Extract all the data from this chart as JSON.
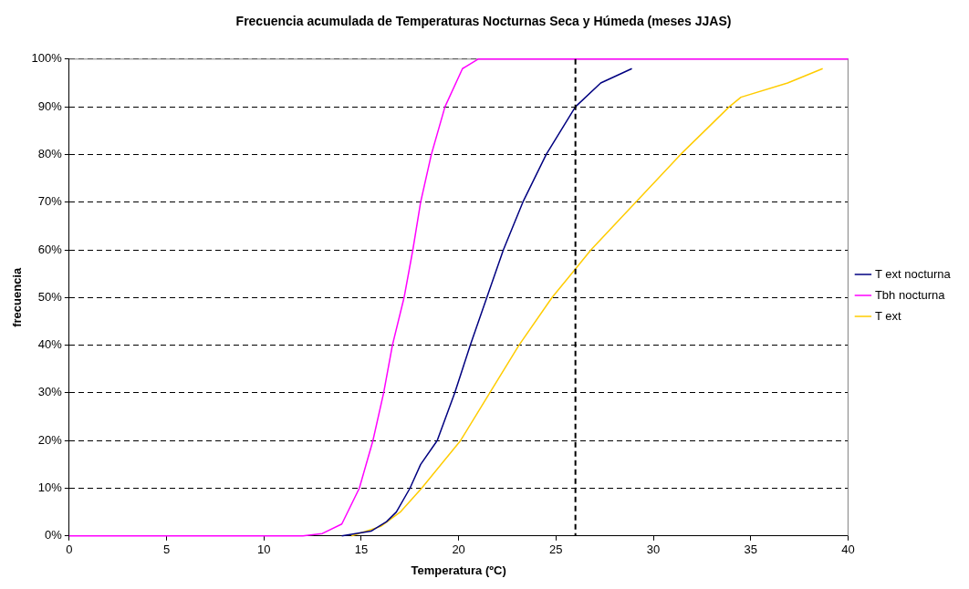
{
  "chart_data": {
    "type": "line",
    "title": "Frecuencia acumulada de Temperaturas Nocturnas Seca y Húmeda (meses JJAS)",
    "xlabel": "Temperatura (ºC)",
    "ylabel": "frecuencia",
    "xlim": [
      0,
      40
    ],
    "xticks": [
      0,
      5,
      10,
      15,
      20,
      25,
      30,
      35,
      40
    ],
    "ylim": [
      0,
      100
    ],
    "yticks": [
      {
        "value": 0,
        "label": "0%"
      },
      {
        "value": 10,
        "label": "10%"
      },
      {
        "value": 20,
        "label": "20%"
      },
      {
        "value": 30,
        "label": "30%"
      },
      {
        "value": 40,
        "label": "40%"
      },
      {
        "value": 50,
        "label": "50%"
      },
      {
        "value": 60,
        "label": "60%"
      },
      {
        "value": 70,
        "label": "70%"
      },
      {
        "value": 80,
        "label": "80%"
      },
      {
        "value": 90,
        "label": "90%"
      },
      {
        "value": 100,
        "label": "100%"
      }
    ],
    "grid": "y",
    "legend": "right",
    "marker": "none",
    "line_style": "solid",
    "ref_lines": [
      {
        "axis": "x",
        "value": 26,
        "color": "#000000",
        "line_style": "dashed"
      }
    ],
    "series": [
      {
        "name": "T ext nocturna",
        "color": "#000080",
        "x": [
          14,
          15.5,
          16.3,
          16.8,
          17.5,
          18.05,
          18.9,
          19.8,
          20.6,
          21.45,
          22.3,
          23.3,
          24.5,
          26,
          27.3,
          28.9
        ],
        "values": [
          0,
          1,
          3,
          5,
          10,
          15,
          20,
          30,
          40,
          50,
          60,
          70,
          80,
          90,
          95,
          98
        ]
      },
      {
        "name": "Tbh nocturna",
        "color": "#ff00ff",
        "x": [
          0,
          12,
          13,
          14,
          14.9,
          15.6,
          16.15,
          16.6,
          17.2,
          17.65,
          18.05,
          18.6,
          19.3,
          20.2,
          21,
          40
        ],
        "values": [
          0,
          0,
          0.5,
          2.5,
          10,
          20,
          30,
          40,
          50,
          60,
          70,
          80,
          90,
          98,
          100,
          100
        ]
      },
      {
        "name": "T ext",
        "color": "#ffcc00",
        "x": [
          14.5,
          16,
          17,
          18.1,
          20.1,
          21.6,
          23.1,
          24.8,
          26,
          26.8,
          29.1,
          31.4,
          33.9,
          34.5,
          36.9,
          38.7
        ],
        "values": [
          0,
          2,
          5,
          10,
          20,
          30,
          40,
          50,
          56,
          60,
          70,
          80,
          90,
          92,
          95,
          98
        ]
      }
    ]
  }
}
